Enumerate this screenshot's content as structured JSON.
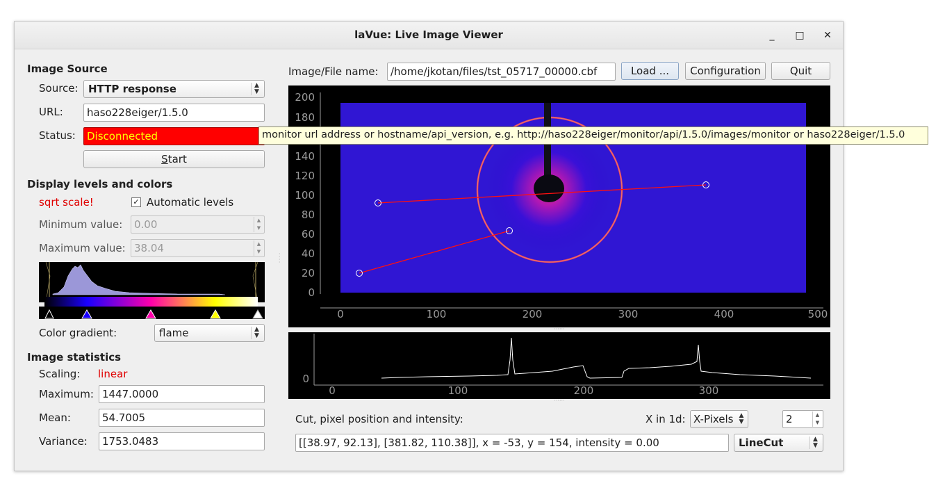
{
  "window": {
    "title": "laVue: Live Image Viewer",
    "minimize": "_",
    "maximize": "□",
    "close": "✕"
  },
  "image_source": {
    "heading": "Image Source",
    "source_label": "Source:",
    "source_value": "HTTP response",
    "url_label": "URL:",
    "url_value": "haso228eiger/1.5.0",
    "status_label": "Status:",
    "status_value": "Disconnected",
    "start_button": "Start"
  },
  "tooltip": "monitor url address or hostname/api_version, e.g. http://haso228eiger/monitor/api/1.5.0/images/monitor or haso228eiger/1.5.0",
  "display": {
    "heading": "Display levels and colors",
    "scale_note": "sqrt scale!",
    "auto_levels_label": "Automatic levels",
    "auto_levels_checked": true,
    "min_label": "Minimum value:",
    "min_value": "0.00",
    "max_label": "Maximum value:",
    "max_value": "38.04",
    "gradient_label": "Color gradient:",
    "gradient_value": "flame",
    "gradient_stops": [
      "#000000",
      "#1a00ff",
      "#ff00aa",
      "#ffff00",
      "#ffffff"
    ]
  },
  "stats": {
    "heading": "Image statistics",
    "scaling_label": "Scaling:",
    "scaling_value": "linear",
    "maximum_label": "Maximum:",
    "maximum_value": "1447.0000",
    "mean_label": "Mean:",
    "mean_value": "54.7005",
    "variance_label": "Variance:",
    "variance_value": "1753.0483"
  },
  "file": {
    "label": "Image/File name:",
    "path": "/home/jkotan/files/tst_05717_00000.cbf",
    "load_button": "Load ...",
    "config_button": "Configuration",
    "quit_button": "Quit"
  },
  "image_plot": {
    "y_ticks": [
      "200",
      "180",
      "160",
      "140",
      "120",
      "100",
      "80",
      "60",
      "40",
      "20",
      "0"
    ],
    "x_ticks": [
      "0",
      "100",
      "200",
      "300",
      "400",
      "500"
    ]
  },
  "cut_plot": {
    "y_ticks": [
      "0"
    ],
    "x_ticks": [
      "0",
      "100",
      "200",
      "300"
    ]
  },
  "cut": {
    "label": "Cut, pixel position and intensity:",
    "x_in_1d_label": "X in 1d:",
    "x_in_1d_value": "X-Pixels",
    "spin_value": "2",
    "info": "[[38.97, 92.13], [381.82, 110.38]], x = -53, y = 154, intensity = 0.00",
    "mode_value": "LineCut"
  }
}
